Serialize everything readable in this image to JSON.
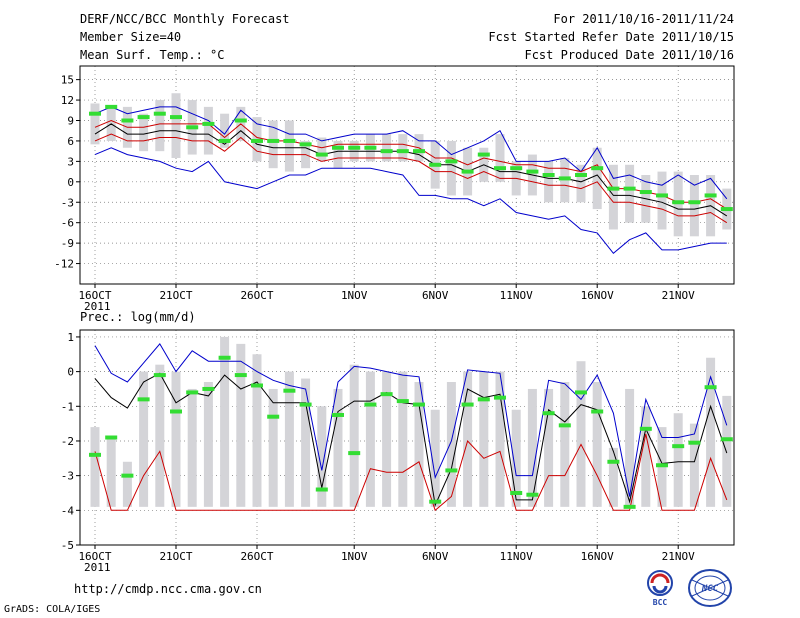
{
  "header": {
    "title": "DERF/NCC/BCC Monthly Forecast",
    "member_size": "Member Size=40",
    "variable": "Mean Surf. Temp.: °C",
    "forecast_period": "For 2011/10/16-2011/11/24",
    "started_date": "Fcst Started Refer Date 2011/10/15",
    "produced_date": "Fcst Produced Date 2011/10/16"
  },
  "footer": {
    "url": "http://cmdp.ncc.cma.gov.cn",
    "credit": "GrADS: COLA/IGES",
    "logo_bcc_text": "BCC",
    "logo_ncc_text": "NCC"
  },
  "colors": {
    "range_bar": "#d4d4d8",
    "median_marker": "#33dd33",
    "envelope": "#0000cc",
    "mean_line": "#000000",
    "spread_line": "#cc0000"
  },
  "chart_data": [
    {
      "type": "box-envelope",
      "title": "Mean Surf. Temp.: °C",
      "xlabel": "",
      "ylabel": "°C",
      "ylim": [
        -15,
        17
      ],
      "yticks": [
        15,
        12,
        9,
        6,
        3,
        0,
        -3,
        -6,
        -9,
        -12
      ],
      "xticks": [
        {
          "day": 1,
          "label": "16OCT"
        },
        {
          "day": 6,
          "label": "21OCT"
        },
        {
          "day": 11,
          "label": "26OCT"
        },
        {
          "day": 17,
          "label": "1NOV"
        },
        {
          "day": 22,
          "label": "6NOV"
        },
        {
          "day": 27,
          "label": "11NOV"
        },
        {
          "day": 32,
          "label": "16NOV"
        },
        {
          "day": 37,
          "label": "21NOV"
        }
      ],
      "year_label": "2011",
      "days": [
        1,
        2,
        3,
        4,
        5,
        6,
        7,
        8,
        9,
        10,
        11,
        12,
        13,
        14,
        15,
        16,
        17,
        18,
        19,
        20,
        21,
        22,
        23,
        24,
        25,
        26,
        27,
        28,
        29,
        30,
        31,
        32,
        33,
        34,
        35,
        36,
        37,
        38,
        39,
        40
      ],
      "bar_low": [
        5.5,
        6,
        5,
        4.5,
        4.5,
        3.5,
        4,
        4,
        5,
        6,
        3,
        2,
        1.5,
        2,
        3,
        2,
        3,
        3,
        3,
        3,
        3,
        -1,
        -2,
        -2,
        0,
        0,
        -2,
        -2,
        -3,
        -3,
        -3,
        -4,
        -7,
        -6,
        -6,
        -7,
        -8,
        -8,
        -8,
        -7
      ],
      "bar_high": [
        11.5,
        11,
        11,
        10,
        12,
        13,
        12,
        11,
        10,
        11,
        9.5,
        9,
        9,
        6,
        6.5,
        6,
        6,
        7,
        7,
        7,
        7,
        6,
        6,
        5,
        5,
        7,
        3,
        4,
        3,
        3.5,
        2.5,
        5,
        2.5,
        2.5,
        1,
        1.5,
        1.5,
        1,
        1,
        -1
      ],
      "median": [
        10,
        11,
        9,
        9.5,
        10,
        9.5,
        8,
        8.5,
        6,
        9,
        6,
        6,
        6,
        5.5,
        4,
        5,
        5,
        5,
        4.5,
        4.5,
        4.5,
        2.5,
        3,
        1.5,
        4,
        2,
        2,
        1.5,
        1,
        0.5,
        1,
        2,
        -1,
        -1,
        -1.5,
        -2,
        -3,
        -3,
        -2,
        -4
      ],
      "upper": [
        10,
        11,
        10,
        10.5,
        11,
        11,
        10,
        9,
        7,
        10.5,
        8.5,
        8,
        7,
        7,
        6,
        6.5,
        7,
        7,
        7,
        7.5,
        6,
        6,
        4,
        5,
        6,
        7.5,
        3,
        3,
        3,
        3.5,
        1.5,
        5,
        0.5,
        1,
        0,
        -0.5,
        1,
        -0.5,
        0.5,
        -2.5
      ],
      "upper_red": [
        8,
        9,
        8,
        8,
        8.5,
        8.5,
        8.5,
        8.5,
        6.5,
        8.5,
        6.5,
        6,
        6,
        5.5,
        5,
        5.5,
        5.5,
        5.5,
        5.5,
        5.5,
        5,
        3.5,
        3.5,
        2.5,
        3.5,
        3,
        2.5,
        2.5,
        2,
        2,
        1.5,
        2.5,
        -1,
        -1,
        -1.5,
        -2,
        -3,
        -3,
        -2.5,
        -4
      ],
      "mean": [
        7,
        8.5,
        7,
        7,
        7.5,
        7.5,
        7,
        7,
        5.5,
        7.5,
        5.5,
        5,
        5,
        5,
        4,
        4.5,
        4.5,
        4.5,
        4.5,
        4.5,
        4,
        2.5,
        2.5,
        1.5,
        2.5,
        1.5,
        1.5,
        1,
        0.5,
        0.5,
        0,
        1,
        -2,
        -2,
        -2.5,
        -3,
        -4,
        -4,
        -3.5,
        -5
      ],
      "lower_red": [
        6,
        7,
        6,
        6,
        6.5,
        6.5,
        6,
        6,
        4.5,
        6.5,
        4.5,
        4,
        4,
        4,
        3,
        3.5,
        3.5,
        3.5,
        3.5,
        3.5,
        3,
        1.5,
        1.5,
        0.5,
        1.5,
        0.5,
        0.5,
        0,
        -0.5,
        -0.5,
        -1,
        0,
        -3,
        -3,
        -3.5,
        -4,
        -5,
        -5,
        -4.5,
        -6
      ],
      "lower": [
        4,
        5,
        4,
        3.5,
        3,
        2,
        1.5,
        3,
        0,
        -0.5,
        -1,
        0,
        1,
        1,
        2,
        2,
        2,
        2,
        1.5,
        1,
        -2,
        -2,
        -2.5,
        -2.5,
        -3.5,
        -2.5,
        -4.5,
        -5,
        -5.5,
        -5,
        -7,
        -7.5,
        -10.5,
        -8.5,
        -7.5,
        -10,
        -10,
        -9.5,
        -9,
        -9
      ]
    },
    {
      "type": "box-envelope",
      "title": "Prec.: log(mm/d)",
      "xlabel": "",
      "ylabel": "log(mm/d)",
      "ylim": [
        -5,
        1.2
      ],
      "yticks": [
        1,
        0,
        -1,
        -2,
        -3,
        -4,
        -5
      ],
      "xticks": [
        {
          "day": 1,
          "label": "16OCT"
        },
        {
          "day": 6,
          "label": "21OCT"
        },
        {
          "day": 11,
          "label": "26OCT"
        },
        {
          "day": 17,
          "label": "1NOV"
        },
        {
          "day": 22,
          "label": "6NOV"
        },
        {
          "day": 27,
          "label": "11NOV"
        },
        {
          "day": 32,
          "label": "16NOV"
        },
        {
          "day": 37,
          "label": "21NOV"
        }
      ],
      "year_label": "2011",
      "days": [
        1,
        2,
        3,
        4,
        5,
        6,
        7,
        8,
        9,
        10,
        11,
        12,
        13,
        14,
        15,
        16,
        17,
        18,
        19,
        20,
        21,
        22,
        23,
        24,
        25,
        26,
        27,
        28,
        29,
        30,
        31,
        32,
        33,
        34,
        35,
        36,
        37,
        38,
        39,
        40
      ],
      "bar_low": [
        -3.9,
        -3.9,
        -3.9,
        -3.9,
        -3.9,
        -3.9,
        -3.9,
        -3.9,
        -3.9,
        -3.9,
        -3.9,
        -3.9,
        -3.9,
        -3.9,
        -3.9,
        -3.9,
        -3.9,
        -3.9,
        -3.9,
        -3.9,
        -3.9,
        -3.9,
        -3.9,
        -3.9,
        -3.9,
        -3.9,
        -3.9,
        -3.9,
        -3.9,
        -3.9,
        -3.9,
        -3.9,
        -3.9,
        -3.9,
        -3.9,
        -3.9,
        -3.9,
        -3.9,
        -3.9,
        -3.9
      ],
      "bar_high": [
        -1.6,
        -1.9,
        -2.6,
        0,
        0.2,
        0,
        -0.5,
        -0.3,
        1,
        0.8,
        0.5,
        -0.5,
        0,
        -0.2,
        -1,
        -0.5,
        0.2,
        0,
        0,
        0,
        -0.3,
        -1.1,
        -0.3,
        0,
        0,
        0,
        -1.1,
        -0.5,
        -0.5,
        -0.3,
        0.3,
        -0.3,
        -2.2,
        -0.5,
        -1,
        -1.6,
        -1.2,
        -1.5,
        0.4,
        -0.7
      ],
      "median": [
        -2.4,
        -1.9,
        -3,
        -0.8,
        -0.1,
        -1.15,
        -0.6,
        -0.5,
        0.4,
        -0.1,
        -0.4,
        -1.3,
        -0.55,
        -0.95,
        -3.4,
        -1.25,
        -2.35,
        -0.95,
        -0.65,
        -0.85,
        -0.95,
        -3.75,
        -2.85,
        -0.95,
        -0.8,
        -0.75,
        -3.5,
        -3.55,
        -1.2,
        -1.55,
        -0.6,
        -1.15,
        -2.6,
        -3.9,
        -1.65,
        -2.7,
        -2.15,
        -2.05,
        -0.45,
        -1.95
      ],
      "upper": [
        0.75,
        -0.05,
        -0.3,
        0.25,
        0.8,
        0,
        0.6,
        0.3,
        0.3,
        0.3,
        0,
        -0.25,
        -0.4,
        -0.5,
        -2.85,
        -0.3,
        0.15,
        0.1,
        0,
        -0.1,
        -0.15,
        -3.05,
        -2,
        0.05,
        0,
        -0.05,
        -3,
        -3,
        -0.25,
        -0.35,
        -0.8,
        -0.1,
        -1.2,
        -3.6,
        -0.8,
        -1.9,
        -1.9,
        -1.8,
        -0.15,
        -1.55
      ],
      "mean": [
        -0.2,
        -0.75,
        -1.05,
        -0.3,
        -0.05,
        -0.9,
        -0.6,
        -0.7,
        -0.1,
        -0.5,
        -0.3,
        -0.9,
        -0.9,
        -0.9,
        -3.35,
        -1.15,
        -0.85,
        -0.85,
        -0.6,
        -0.9,
        -0.95,
        -3.85,
        -2.8,
        -0.5,
        -0.75,
        -0.65,
        -3.7,
        -3.7,
        -1.1,
        -1.45,
        -0.95,
        -1.1,
        -2.3,
        -3.75,
        -1.65,
        -2.65,
        -2.6,
        -2.6,
        -1,
        -2.35
      ],
      "lower_red": [
        -2.3,
        -4,
        -4,
        -3,
        -2.3,
        -4,
        -4,
        -4,
        -4,
        -4,
        -4,
        -4,
        -4,
        -4,
        -4,
        -4,
        -4,
        -2.8,
        -2.9,
        -2.9,
        -2.6,
        -4,
        -3.6,
        -2,
        -2.5,
        -2.3,
        -4,
        -4,
        -3,
        -3,
        -2.1,
        -3,
        -4,
        -4,
        -1.8,
        -4,
        -4,
        -4,
        -2.5,
        -3.7
      ]
    }
  ]
}
